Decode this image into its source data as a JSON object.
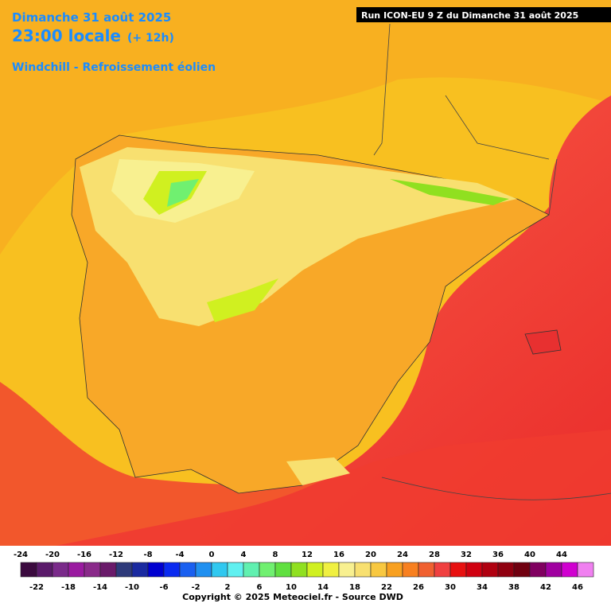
{
  "header": {
    "date": "Dimanche 31 août 2025",
    "time": "23:00 locale",
    "lead": "(+ 12h)",
    "parameter": "Windchill - Refroissement éolien",
    "run": "Run ICON-EU 9 Z du Dimanche 31 août 2025"
  },
  "legend": {
    "values": [
      -24,
      -22,
      -20,
      -18,
      -16,
      -14,
      -12,
      -10,
      -8,
      -6,
      -4,
      -2,
      0,
      2,
      4,
      6,
      8,
      10,
      12,
      14,
      16,
      18,
      20,
      22,
      24,
      26,
      28,
      30,
      32,
      34,
      36,
      38,
      40,
      42,
      44,
      46
    ],
    "colors": [
      "#3b0a3f",
      "#5a1a6a",
      "#7a2a8a",
      "#9a1aa0",
      "#8a2a8a",
      "#6a1a6a",
      "#2e3a7a",
      "#1a2aa0",
      "#0000d0",
      "#0a2af0",
      "#1a60f0",
      "#2090f0",
      "#30c8f0",
      "#60f0f0",
      "#60f0b0",
      "#70f070",
      "#60e040",
      "#90e020",
      "#d0f020",
      "#f0f040",
      "#f8f090",
      "#f8e070",
      "#f8c840",
      "#f8a020",
      "#f88020",
      "#f06030",
      "#f04040",
      "#e81010",
      "#d00010",
      "#b00010",
      "#900010",
      "#700010",
      "#800060",
      "#a000a0",
      "#d000d0",
      "#f080f0"
    ]
  },
  "footer": {
    "copyright": "Copyright © 2025 Meteociel.fr - Source DWD"
  }
}
